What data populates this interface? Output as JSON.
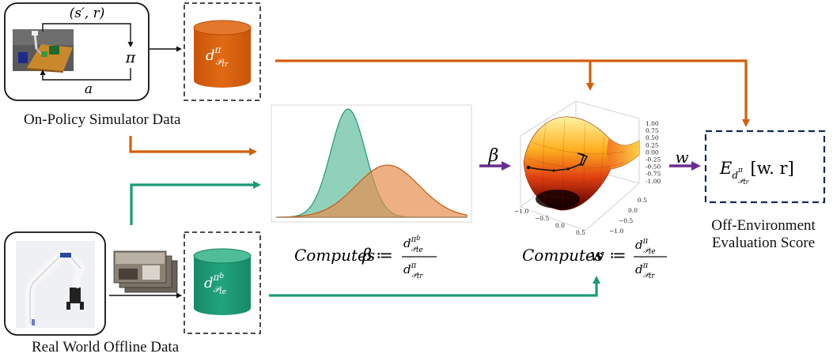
{
  "sim": {
    "caption": "On-Policy Simulator Data",
    "loop_top": "(s′, r)",
    "loop_pi": "π",
    "loop_bottom": "a"
  },
  "real": {
    "caption": "Real World Offline Data"
  },
  "db_train": {
    "base": "d",
    "sup": "π",
    "sub": "𝒫",
    "sub2": "tr"
  },
  "db_test": {
    "base": "d",
    "sup": "π",
    "sup2": "b",
    "sub": "𝒫",
    "sub2": "te"
  },
  "beta_box": {
    "computes": "Computes",
    "symbol": "β",
    "assign": "≔",
    "num": "d",
    "num_sup": "π",
    "num_sup2": "b",
    "num_sub": "𝒫",
    "num_sub2": "te",
    "den": "d",
    "den_sup": "π",
    "den_sub": "𝒫",
    "den_sub2": "tr"
  },
  "w_box": {
    "computes": "Computes",
    "symbol": "w",
    "assign": "≔",
    "num": "d",
    "num_sup": "π",
    "num_sub": "𝒫",
    "num_sub2": "te",
    "den": "d",
    "den_sup": "π",
    "den_sub": "𝒫",
    "den_sub2": "tr"
  },
  "arrows": {
    "beta": "β",
    "w": "w"
  },
  "score": {
    "expr_E": "E",
    "expr_body": "[w. r]",
    "caption_line1": "Off-Environment",
    "caption_line2": "Evaluation Score"
  },
  "surface": {
    "z_ticks": [
      "1.00",
      "0.75",
      "0.50",
      "0.25",
      "0.00",
      "-0.25",
      "-0.50",
      "-0.75",
      "-1.00"
    ],
    "x_ticks": [
      "−1.0",
      "−0.5",
      "0.0",
      "0.5"
    ],
    "y_ticks": [
      "0.5",
      "0.0",
      "−0.5",
      "−1.0"
    ]
  },
  "colors": {
    "orange": "#d35f0b",
    "green": "#1c9b77",
    "purple": "#6a2c91",
    "navy": "#14285a"
  }
}
